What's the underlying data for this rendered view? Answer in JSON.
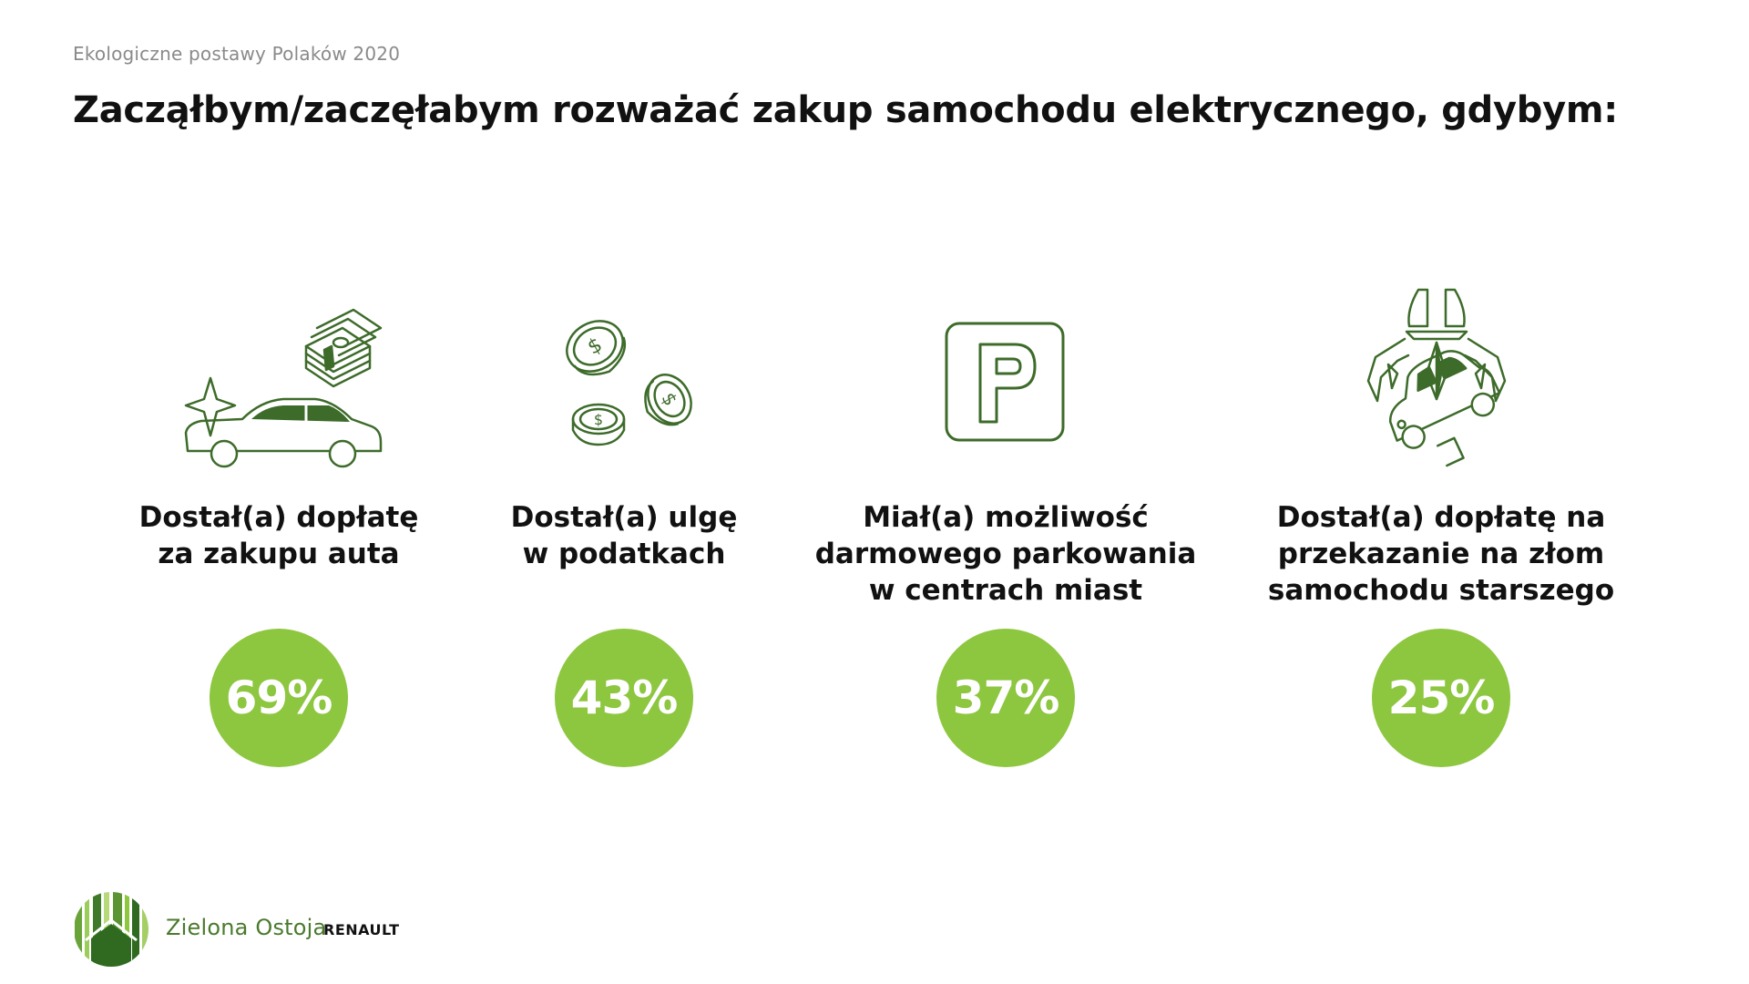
{
  "header": {
    "subtitle": "Ekologiczne postawy Polaków 2020",
    "title": "Zacząłbym/zaczęłabym rozważać zakup samochodu elektrycznego, gdybym:"
  },
  "cards": [
    {
      "label": "Dostał(a) dopłatę\nza zakupu auta",
      "value": "69%",
      "icon": "car-with-money-icon"
    },
    {
      "label": "Dostał(a) ulgę\nw podatkach",
      "value": "43%",
      "icon": "coins-icon"
    },
    {
      "label": "Miał(a) możliwość\ndarmowego parkowania\nw centrach miast",
      "value": "37%",
      "icon": "parking-sign-icon"
    },
    {
      "label": "Dostał(a) dopłatę na\nprzekazanie na złom\nsamochodu starszego",
      "value": "25%",
      "icon": "scrap-car-claw-icon"
    }
  ],
  "footer": {
    "brand": "Zielona Ostoja",
    "partner": "RENAULT"
  },
  "colors": {
    "accent_green": "#8dc63f",
    "icon_dark_green": "#3d6b2a",
    "brand_green": "#4a7a2e"
  }
}
